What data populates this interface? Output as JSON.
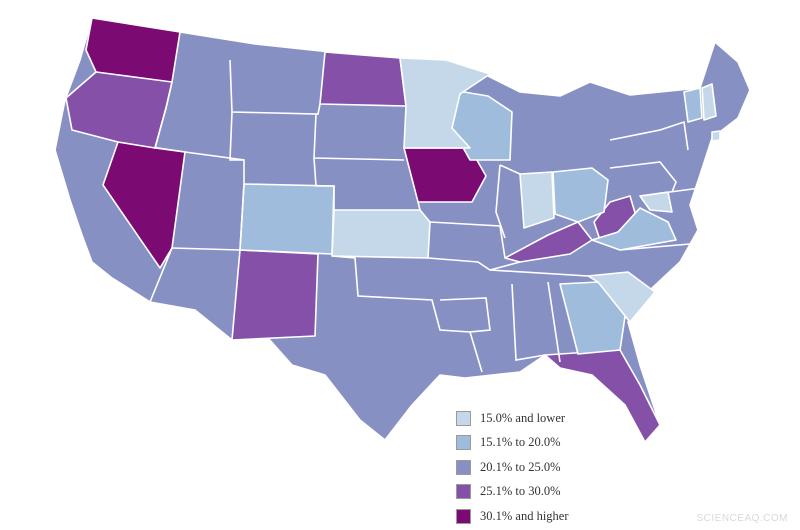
{
  "legend": {
    "items": [
      {
        "label": "15.0% and lower",
        "color": "#c5d8e9"
      },
      {
        "label": "15.1% to 20.0%",
        "color": "#9fbcdc"
      },
      {
        "label": "20.1% to 25.0%",
        "color": "#8790c3"
      },
      {
        "label": "25.1% to 30.0%",
        "color": "#8450a8"
      },
      {
        "label": "30.1% and higher",
        "color": "#7b0a73"
      }
    ]
  },
  "watermark": "SCIENCEAQ.COM"
}
